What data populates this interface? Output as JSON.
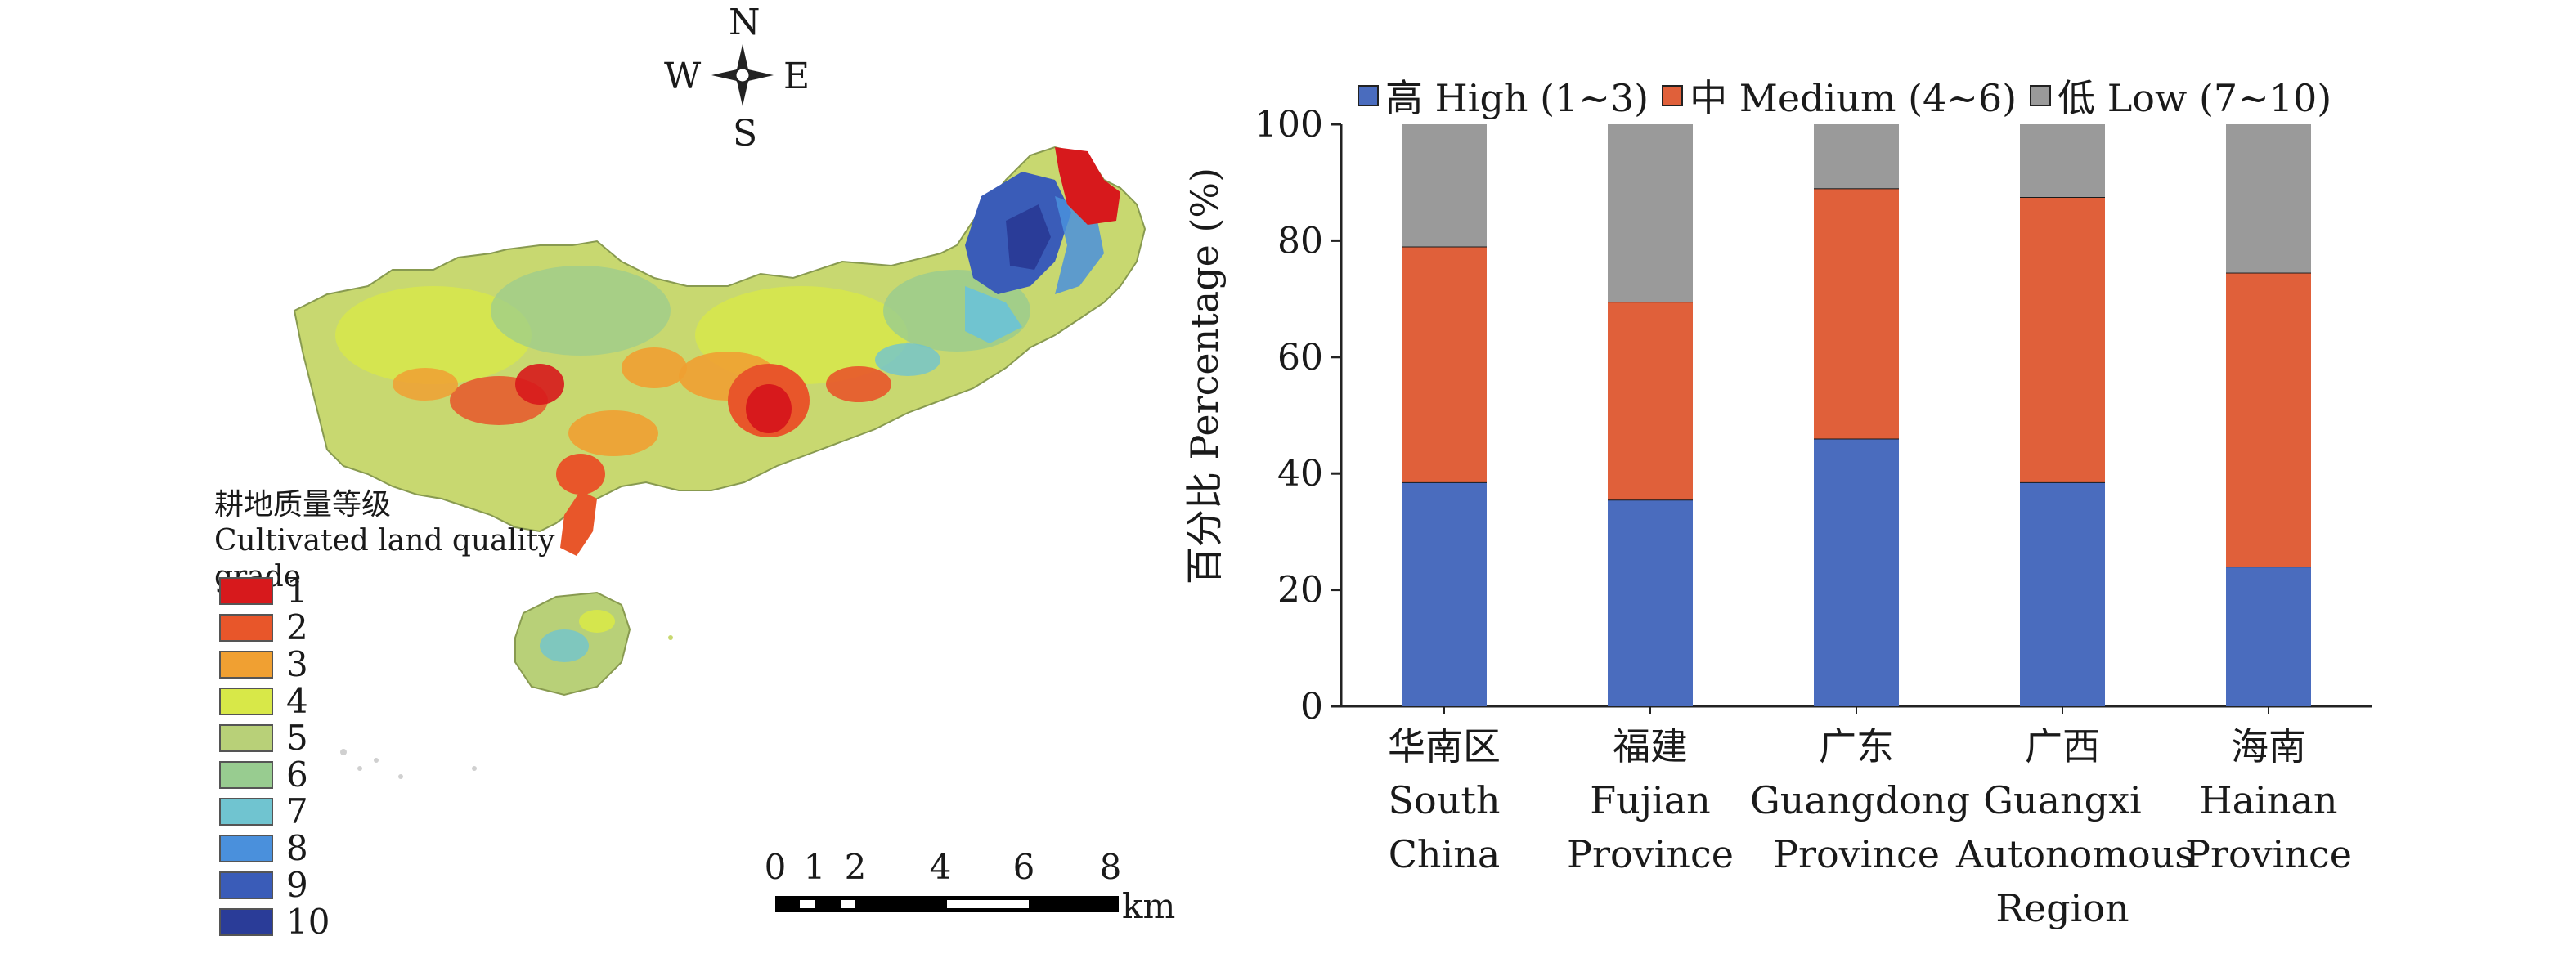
{
  "compass": {
    "n": "N",
    "s": "S",
    "e": "E",
    "w": "W"
  },
  "map_legend": {
    "title_cn": "耕地质量等级",
    "title_en": "Cultivated land quality grade",
    "grades": [
      {
        "label": "1",
        "color": "#d7191c"
      },
      {
        "label": "2",
        "color": "#e8562a"
      },
      {
        "label": "3",
        "color": "#f0a032"
      },
      {
        "label": "4",
        "color": "#d8e848"
      },
      {
        "label": "5",
        "color": "#b8d078"
      },
      {
        "label": "6",
        "color": "#98cc90"
      },
      {
        "label": "7",
        "color": "#70c4d0"
      },
      {
        "label": "8",
        "color": "#4a90dc"
      },
      {
        "label": "9",
        "color": "#3a5cb8"
      },
      {
        "label": "10",
        "color": "#2a3c98"
      }
    ]
  },
  "scale_bar": {
    "ticks": [
      "0",
      "1",
      "2",
      "4",
      "6",
      "8"
    ],
    "unit": "km"
  },
  "chart_data": {
    "type": "bar",
    "stacked": true,
    "ylabel": "百分比 Percentage (%)",
    "ylim": [
      0,
      100
    ],
    "yticks": [
      "0",
      "20",
      "40",
      "60",
      "80",
      "100"
    ],
    "grid": false,
    "legend_position": "top",
    "categories": [
      {
        "cn": "华南区",
        "en": [
          "South",
          "China"
        ]
      },
      {
        "cn": "福建",
        "en": [
          "Fujian",
          "Province"
        ]
      },
      {
        "cn": "广东",
        "en": [
          "Guangdong",
          "Province"
        ]
      },
      {
        "cn": "广西",
        "en": [
          "Guangxi",
          "Autonomous",
          "Region"
        ]
      },
      {
        "cn": "海南",
        "en": [
          "Hainan",
          "Province"
        ]
      }
    ],
    "series": [
      {
        "name": "高 High (1~3)",
        "color": "#4a6cbe",
        "values": [
          38.5,
          35.5,
          46,
          38.5,
          24
        ]
      },
      {
        "name": "中 Medium (4~6)",
        "color": "#e0603a",
        "values": [
          40.5,
          34,
          43,
          49,
          50.5
        ]
      },
      {
        "name": "低 Low (7~10)",
        "color": "#9a9a9a",
        "values": [
          21,
          30.5,
          11,
          12.5,
          25.5
        ]
      }
    ]
  }
}
